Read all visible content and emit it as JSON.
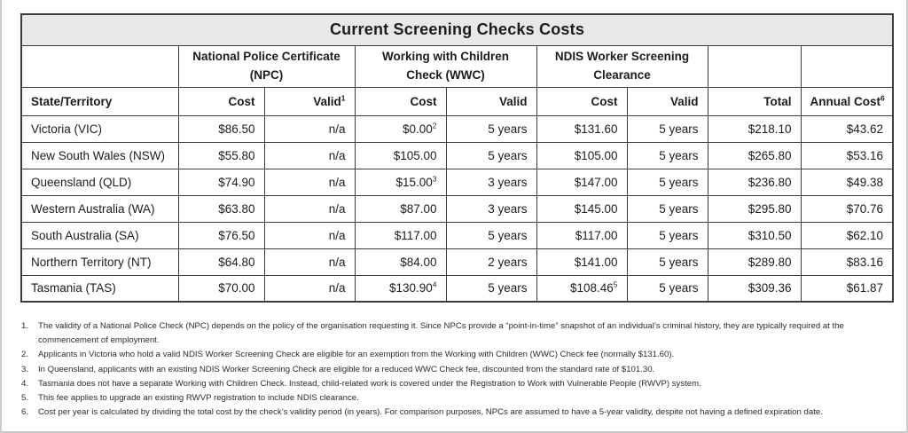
{
  "table": {
    "title": "Current Screening Checks Costs",
    "groups": [
      {
        "line1": "National Police Certificate",
        "line2": "(NPC)"
      },
      {
        "line1": "Working with Children",
        "line2": "Check (WWC)"
      },
      {
        "line1": "NDIS Worker Screening",
        "line2": "Clearance"
      }
    ],
    "columns": [
      {
        "label": "State/Territory"
      },
      {
        "label": "Cost"
      },
      {
        "label": "Valid",
        "sup": "1"
      },
      {
        "label": "Cost"
      },
      {
        "label": "Valid"
      },
      {
        "label": "Cost"
      },
      {
        "label": "Valid"
      },
      {
        "label": "Total"
      },
      {
        "label": "Annual Cost",
        "sup": "6"
      }
    ],
    "rows": [
      {
        "cells": [
          {
            "t": "Victoria (VIC)"
          },
          {
            "t": "$86.50"
          },
          {
            "t": "n/a"
          },
          {
            "t": "$0.00",
            "sup": "2"
          },
          {
            "t": "5 years"
          },
          {
            "t": "$131.60"
          },
          {
            "t": "5 years"
          },
          {
            "t": "$218.10"
          },
          {
            "t": "$43.62"
          }
        ]
      },
      {
        "cells": [
          {
            "t": "New South Wales (NSW)"
          },
          {
            "t": "$55.80"
          },
          {
            "t": "n/a"
          },
          {
            "t": "$105.00"
          },
          {
            "t": "5 years"
          },
          {
            "t": "$105.00"
          },
          {
            "t": "5 years"
          },
          {
            "t": "$265.80"
          },
          {
            "t": "$53.16"
          }
        ]
      },
      {
        "cells": [
          {
            "t": "Queensland (QLD)"
          },
          {
            "t": "$74.90"
          },
          {
            "t": "n/a"
          },
          {
            "t": "$15.00",
            "sup": "3"
          },
          {
            "t": "3 years"
          },
          {
            "t": "$147.00"
          },
          {
            "t": "5 years"
          },
          {
            "t": "$236.80"
          },
          {
            "t": "$49.38"
          }
        ]
      },
      {
        "cells": [
          {
            "t": "Western Australia (WA)"
          },
          {
            "t": "$63.80"
          },
          {
            "t": "n/a"
          },
          {
            "t": "$87.00"
          },
          {
            "t": "3 years"
          },
          {
            "t": "$145.00"
          },
          {
            "t": "5 years"
          },
          {
            "t": "$295.80"
          },
          {
            "t": "$70.76"
          }
        ]
      },
      {
        "cells": [
          {
            "t": "South Australia (SA)"
          },
          {
            "t": "$76.50"
          },
          {
            "t": "n/a"
          },
          {
            "t": "$117.00"
          },
          {
            "t": "5 years"
          },
          {
            "t": "$117.00"
          },
          {
            "t": "5 years"
          },
          {
            "t": "$310.50"
          },
          {
            "t": "$62.10"
          }
        ]
      },
      {
        "cells": [
          {
            "t": "Northern Territory (NT)"
          },
          {
            "t": "$64.80"
          },
          {
            "t": "n/a"
          },
          {
            "t": "$84.00"
          },
          {
            "t": "2 years"
          },
          {
            "t": "$141.00"
          },
          {
            "t": "5 years"
          },
          {
            "t": "$289.80"
          },
          {
            "t": "$83.16"
          }
        ]
      },
      {
        "cells": [
          {
            "t": "Tasmania (TAS)"
          },
          {
            "t": "$70.00"
          },
          {
            "t": "n/a"
          },
          {
            "t": "$130.90",
            "sup": "4"
          },
          {
            "t": "5 years"
          },
          {
            "t": "$108.46",
            "sup": "5"
          },
          {
            "t": "5 years"
          },
          {
            "t": "$309.36"
          },
          {
            "t": "$61.87"
          }
        ]
      }
    ]
  },
  "footnotes": [
    {
      "num": "1.",
      "text": "The validity of a National Police Check (NPC) depends on the policy of the organisation requesting it. Since NPCs provide a “point-in-time” snapshot of an individual’s criminal history, they are typically required at the commencement of employment."
    },
    {
      "num": "2.",
      "text": "Applicants in Victoria who hold a valid NDIS Worker Screening Check are eligible for an exemption from the Working with Children (WWC) Check fee (normally $131.60)."
    },
    {
      "num": "3.",
      "text": "In Queensland, applicants with an existing NDIS Worker Screening Check are eligible for a reduced WWC Check fee, discounted from the standard rate of $101.30."
    },
    {
      "num": "4.",
      "text": "Tasmania does not have a separate Working with Children Check. Instead, child-related work is covered under the Registration to Work with Vulnerable People (RWVP) system."
    },
    {
      "num": "5.",
      "text": "This fee applies to upgrade an existing RWVP registration to include NDIS clearance."
    },
    {
      "num": "6.",
      "text": "Cost per year is calculated by dividing the total cost by the check’s validity period (in years). For comparison purposes, NPCs are assumed to have a 5-year validity, despite not having a defined expiration date."
    }
  ],
  "colors": {
    "title_bg": "#e8e8e8",
    "table_border": "#3d3d3d",
    "page_border": "#cccccc",
    "text": "#1c1c1c"
  }
}
